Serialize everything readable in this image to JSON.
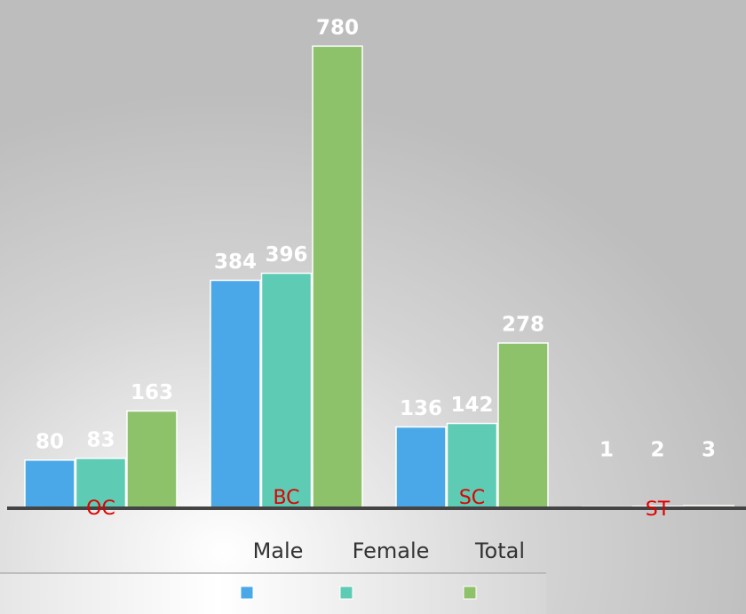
{
  "chart_data": {
    "type": "bar",
    "categories": [
      "OC",
      "BC",
      "SC",
      "ST"
    ],
    "series": [
      {
        "name": "Male",
        "color": "#4aa8e8",
        "values": [
          80,
          384,
          136,
          1
        ]
      },
      {
        "name": "Female",
        "color": "#5ecbb4",
        "values": [
          83,
          396,
          142,
          2
        ]
      },
      {
        "name": "Total",
        "color": "#8dc26a",
        "values": [
          163,
          780,
          278,
          3
        ]
      }
    ]
  }
}
